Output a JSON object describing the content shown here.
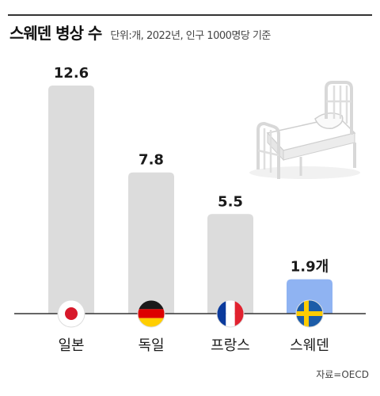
{
  "header": {
    "title": "스웨덴 병상 수",
    "subtitle": "단위:개, 2022년, 인구 1000명당 기준"
  },
  "source": "자료=OECD",
  "colors": {
    "bar_default": "#dcdcdc",
    "bar_highlight": "#8fb3f2",
    "axis": "#333333"
  },
  "chart_data": {
    "type": "bar",
    "title": "스웨덴 병상 수",
    "subtitle": "단위:개, 2022년, 인구 1000명당 기준",
    "categories": [
      "일본",
      "독일",
      "프랑스",
      "스웨덴"
    ],
    "values": [
      12.6,
      7.8,
      5.5,
      1.9
    ],
    "value_labels": [
      "12.6",
      "7.8",
      "5.5",
      "1.9개"
    ],
    "highlight_index": 3,
    "flags": [
      "japan-flag-icon",
      "germany-flag-icon",
      "france-flag-icon",
      "sweden-flag-icon"
    ],
    "ylim": [
      0,
      12.6
    ],
    "grid": false,
    "legend": "none"
  },
  "decoration": {
    "icon": "hospital-bed-icon"
  }
}
